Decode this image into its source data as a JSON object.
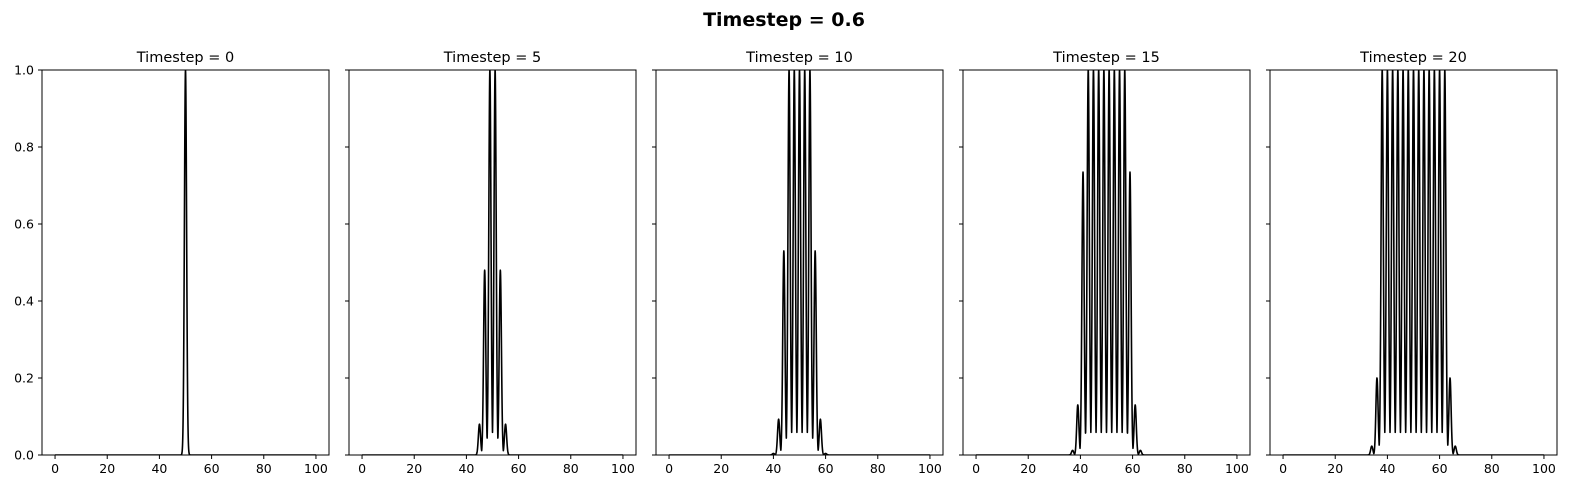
{
  "figure_title": "Timestep = 0.6",
  "colors": {
    "line": "#000000",
    "background": "#ffffff"
  },
  "chart_data": [
    {
      "type": "line",
      "title": "Timestep = 0",
      "xlim": [
        -5,
        105
      ],
      "ylim": [
        0,
        1
      ],
      "xticks": [
        0,
        20,
        40,
        60,
        80,
        100
      ],
      "yticks": [
        0.0,
        0.2,
        0.4,
        0.6,
        0.8,
        1.0
      ],
      "ytick_labels": [
        "0.0",
        "0.2",
        "0.4",
        "0.6",
        "0.8",
        "1.0"
      ],
      "show_ytick_labels": true,
      "x_range": [
        0,
        100
      ],
      "points": [
        [
          48.8,
          0
        ],
        [
          50,
          1
        ],
        [
          51.2,
          0
        ]
      ]
    },
    {
      "type": "line",
      "title": "Timestep = 5",
      "xlim": [
        -5,
        105
      ],
      "ylim": [
        0,
        1
      ],
      "xticks": [
        0,
        20,
        40,
        60,
        80,
        100
      ],
      "yticks": [
        0.0,
        0.2,
        0.4,
        0.6,
        0.8,
        1.0
      ],
      "ytick_labels": [
        "0.0",
        "0.2",
        "0.4",
        "0.6",
        "0.8",
        "1.0"
      ],
      "show_ytick_labels": false,
      "x_range": [
        0,
        100
      ],
      "points": [
        [
          45,
          0.08
        ],
        [
          47,
          0.48
        ],
        [
          49,
          1
        ],
        [
          51,
          1
        ],
        [
          53,
          0.48
        ],
        [
          55,
          0.08
        ]
      ]
    },
    {
      "type": "line",
      "title": "Timestep = 10",
      "xlim": [
        -5,
        105
      ],
      "ylim": [
        0,
        1
      ],
      "xticks": [
        0,
        20,
        40,
        60,
        80,
        100
      ],
      "yticks": [
        0.0,
        0.2,
        0.4,
        0.6,
        0.8,
        1.0
      ],
      "ytick_labels": [
        "0.0",
        "0.2",
        "0.4",
        "0.6",
        "0.8",
        "1.0"
      ],
      "show_ytick_labels": false,
      "x_range": [
        0,
        100
      ],
      "points": [
        [
          40,
          0.004
        ],
        [
          42,
          0.093
        ],
        [
          44,
          0.53
        ],
        [
          46,
          1
        ],
        [
          48,
          1
        ],
        [
          50,
          1
        ],
        [
          52,
          1
        ],
        [
          54,
          1
        ],
        [
          56,
          0.53
        ],
        [
          58,
          0.093
        ],
        [
          60,
          0.004
        ]
      ]
    },
    {
      "type": "line",
      "title": "Timestep = 15",
      "xlim": [
        -5,
        105
      ],
      "ylim": [
        0,
        1
      ],
      "xticks": [
        0,
        20,
        40,
        60,
        80,
        100
      ],
      "yticks": [
        0.0,
        0.2,
        0.4,
        0.6,
        0.8,
        1.0
      ],
      "ytick_labels": [
        "0.0",
        "0.2",
        "0.4",
        "0.6",
        "0.8",
        "1.0"
      ],
      "show_ytick_labels": false,
      "x_range": [
        0,
        100
      ],
      "points": [
        [
          37,
          0.012
        ],
        [
          39,
          0.13
        ],
        [
          41,
          0.735
        ],
        [
          43,
          1
        ],
        [
          45,
          1
        ],
        [
          47,
          1
        ],
        [
          49,
          1
        ],
        [
          51,
          1
        ],
        [
          53,
          1
        ],
        [
          55,
          1
        ],
        [
          57,
          1
        ],
        [
          59,
          0.735
        ],
        [
          61,
          0.13
        ],
        [
          63,
          0.012
        ]
      ]
    },
    {
      "type": "line",
      "title": "Timestep = 20",
      "xlim": [
        -5,
        105
      ],
      "ylim": [
        0,
        1
      ],
      "xticks": [
        0,
        20,
        40,
        60,
        80,
        100
      ],
      "yticks": [
        0.0,
        0.2,
        0.4,
        0.6,
        0.8,
        1.0
      ],
      "ytick_labels": [
        "0.0",
        "0.2",
        "0.4",
        "0.6",
        "0.8",
        "1.0"
      ],
      "show_ytick_labels": false,
      "x_range": [
        0,
        100
      ],
      "points": [
        [
          34,
          0.023
        ],
        [
          36,
          0.2
        ],
        [
          38,
          1
        ],
        [
          40,
          1
        ],
        [
          42,
          1
        ],
        [
          44,
          1
        ],
        [
          46,
          1
        ],
        [
          48,
          1
        ],
        [
          50,
          1
        ],
        [
          52,
          1
        ],
        [
          54,
          1
        ],
        [
          56,
          1
        ],
        [
          58,
          1
        ],
        [
          60,
          1
        ],
        [
          62,
          1
        ],
        [
          64,
          0.2
        ],
        [
          66,
          0.023
        ]
      ]
    }
  ]
}
